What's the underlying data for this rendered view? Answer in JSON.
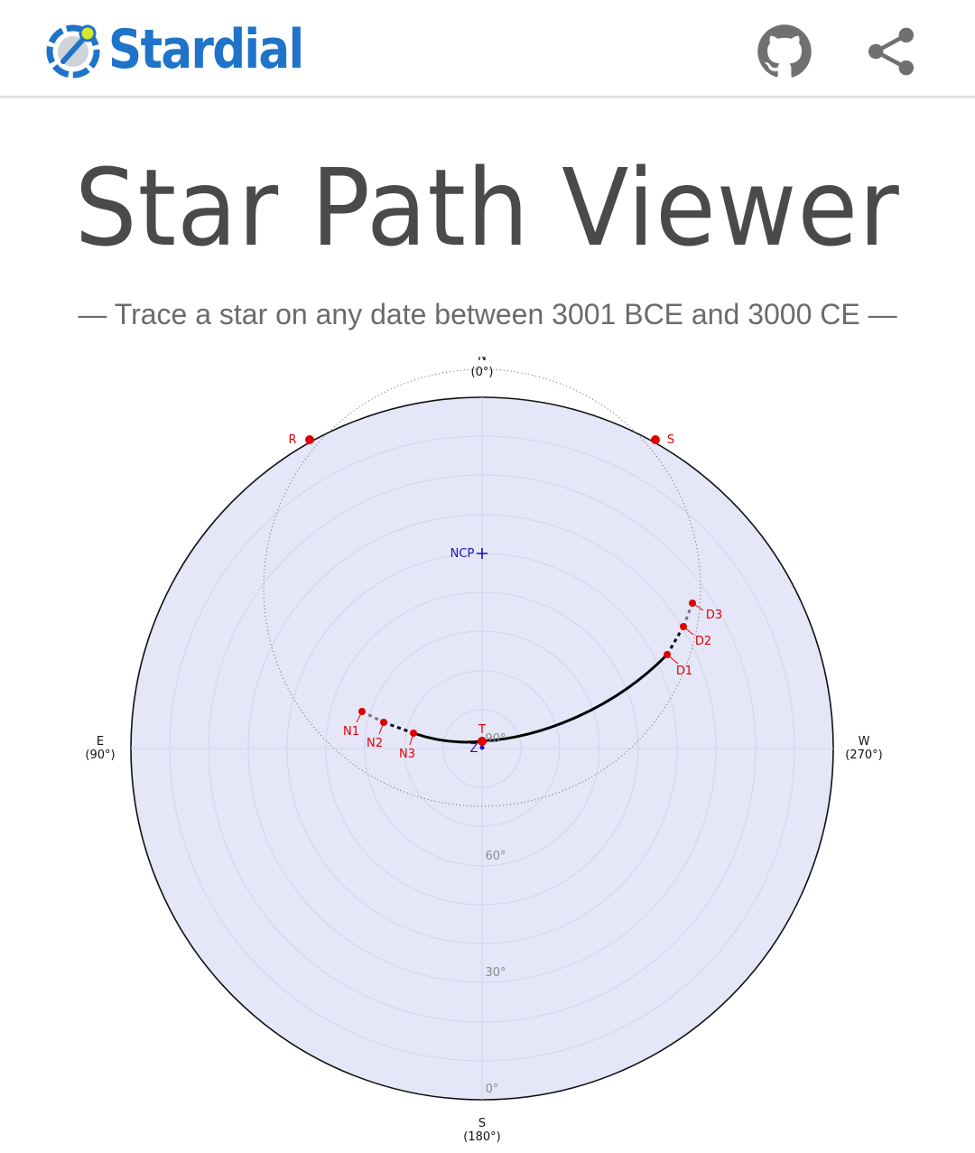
{
  "app": {
    "brand": "Stardial",
    "title": "Star Path Viewer",
    "subtitle": "— Trace a star on any date between 3001 BCE and 3000 CE —"
  },
  "header": {
    "github_icon": "github-icon",
    "share_icon": "share-icon"
  },
  "colors": {
    "brand_blue": "#1f74c9",
    "brand_yellow": "#d6e62b",
    "sky_fill": "#e5e6f8",
    "marker_red": "#e00000",
    "pole_blue": "#1a1aaa"
  },
  "chart_data": {
    "type": "polar",
    "direction_labels": {
      "north": "N",
      "north_deg": "(0°)",
      "east": "E",
      "east_deg": "(90°)",
      "south": "S",
      "south_deg": "(180°)",
      "west": "W",
      "west_deg": "(270°)"
    },
    "altitude_labels": [
      "0°",
      "30°",
      "60°",
      "90°"
    ],
    "grid": true,
    "markers": {
      "rise": "R",
      "set": "S",
      "north_celestial_pole": "NCP",
      "zenith": "Z",
      "transit": "T",
      "night_points": [
        "N1",
        "N2",
        "N3"
      ],
      "dawn_points": [
        "D1",
        "D2",
        "D3"
      ]
    }
  }
}
